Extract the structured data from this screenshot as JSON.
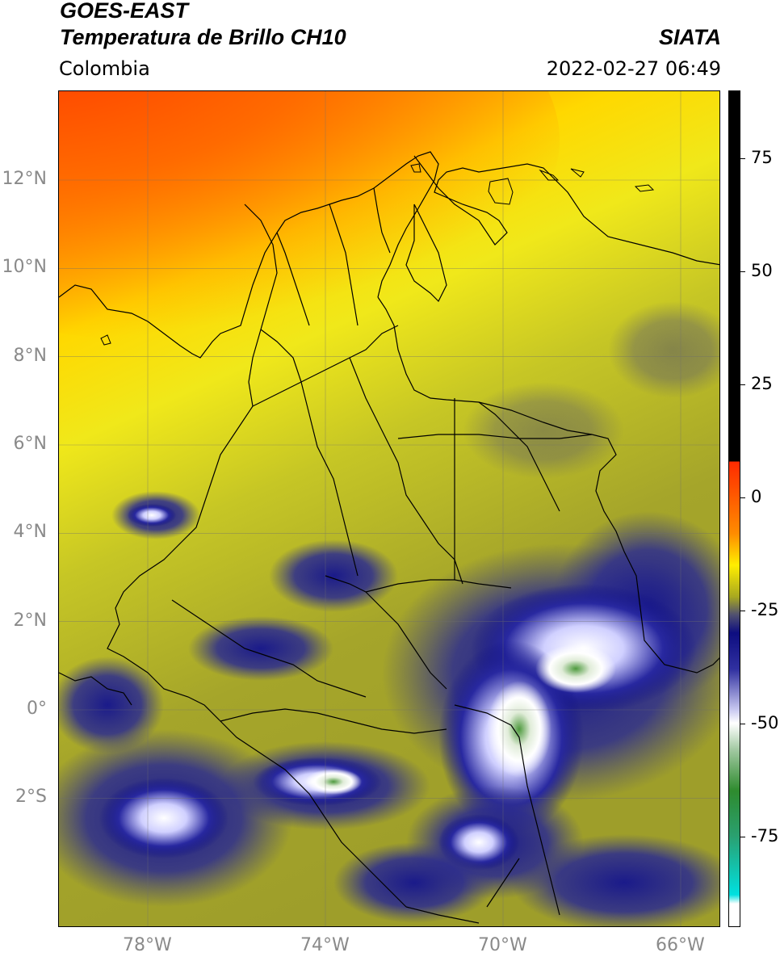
{
  "header": {
    "title_line1": "GOES-EAST",
    "title_line2": "Temperatura de Brillo CH10",
    "agency": "SIATA",
    "region": "Colombia",
    "datetime": "2022-02-27 06:49"
  },
  "map": {
    "lat_labels": [
      "12°N",
      "10°N",
      "8°N",
      "6°N",
      "4°N",
      "2°N",
      "0°",
      "2°S"
    ],
    "lon_labels": [
      "78°W",
      "74°W",
      "70°W",
      "66°W"
    ],
    "lat_values": [
      12,
      10,
      8,
      6,
      4,
      2,
      0,
      -2
    ],
    "lon_values": [
      -78,
      -74,
      -70,
      -66
    ]
  },
  "colorbar": {
    "tick_labels": [
      "75",
      "50",
      "25",
      "0",
      "-25",
      "-50",
      "-75"
    ],
    "tick_values": [
      75,
      50,
      25,
      0,
      -25,
      -50,
      -75
    ],
    "colors": {
      "warm_red": "#ff2a00",
      "orange": "#ff8c00",
      "yellow": "#ffee00",
      "olive": "#a8a820",
      "navy": "#0d0d80",
      "white": "#ffffff",
      "green": "#2e8b2e",
      "cyan": "#00e0e0",
      "black": "#000000"
    }
  }
}
